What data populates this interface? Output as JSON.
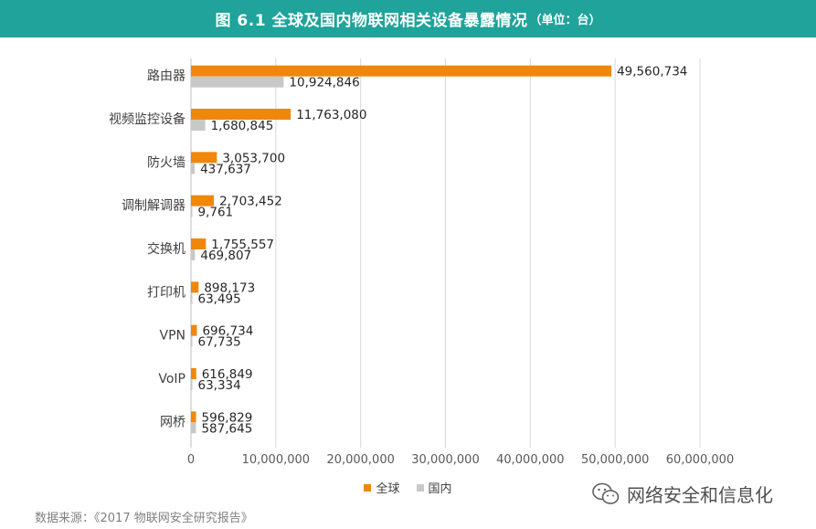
{
  "header": {
    "title": "图 6.1  全球及国内物联网相关设备暴露情况",
    "unit": "（单位：台）"
  },
  "colors": {
    "header_bg": "#1fa39a",
    "global": "#f0870b",
    "domestic": "#c8c8c8"
  },
  "chart_data": {
    "type": "bar",
    "orientation": "horizontal",
    "categories": [
      "路由器",
      "视频监控设备",
      "防火墙",
      "调制解调器",
      "交换机",
      "打印机",
      "VPN",
      "VoIP",
      "网桥"
    ],
    "series": [
      {
        "name": "全球",
        "values": [
          49560734,
          11763080,
          3053700,
          2703452,
          1755557,
          898173,
          696734,
          616849,
          596829
        ]
      },
      {
        "name": "国内",
        "values": [
          10924846,
          1680845,
          437637,
          9761,
          469807,
          63495,
          67735,
          63334,
          587645
        ]
      }
    ],
    "value_labels": {
      "全球": [
        "49,560,734",
        "11,763,080",
        "3,053,700",
        "2,703,452",
        "1,755,557",
        "898,173",
        "696,734",
        "616,849",
        "596,829"
      ],
      "国内": [
        "10,924,846",
        "1,680,845",
        "437,637",
        "9,761",
        "469,807",
        "63,495",
        "67,735",
        "63,334",
        "587,645"
      ]
    },
    "xlim": [
      0,
      60000000
    ],
    "x_ticks": [
      0,
      10000000,
      20000000,
      30000000,
      40000000,
      50000000,
      60000000
    ],
    "x_tick_labels": [
      "0",
      "10,000,000",
      "20,000,000",
      "30,000,000",
      "40,000,000",
      "50,000,000",
      "60,000,000"
    ],
    "grid": true,
    "legend_position": "bottom"
  },
  "legend": {
    "global_label": "全球",
    "domestic_label": "国内"
  },
  "source": "数据来源：《2017 物联网安全研究报告》",
  "watermark": {
    "text": "网络安全和信息化",
    "icon": "wechat-icon"
  }
}
